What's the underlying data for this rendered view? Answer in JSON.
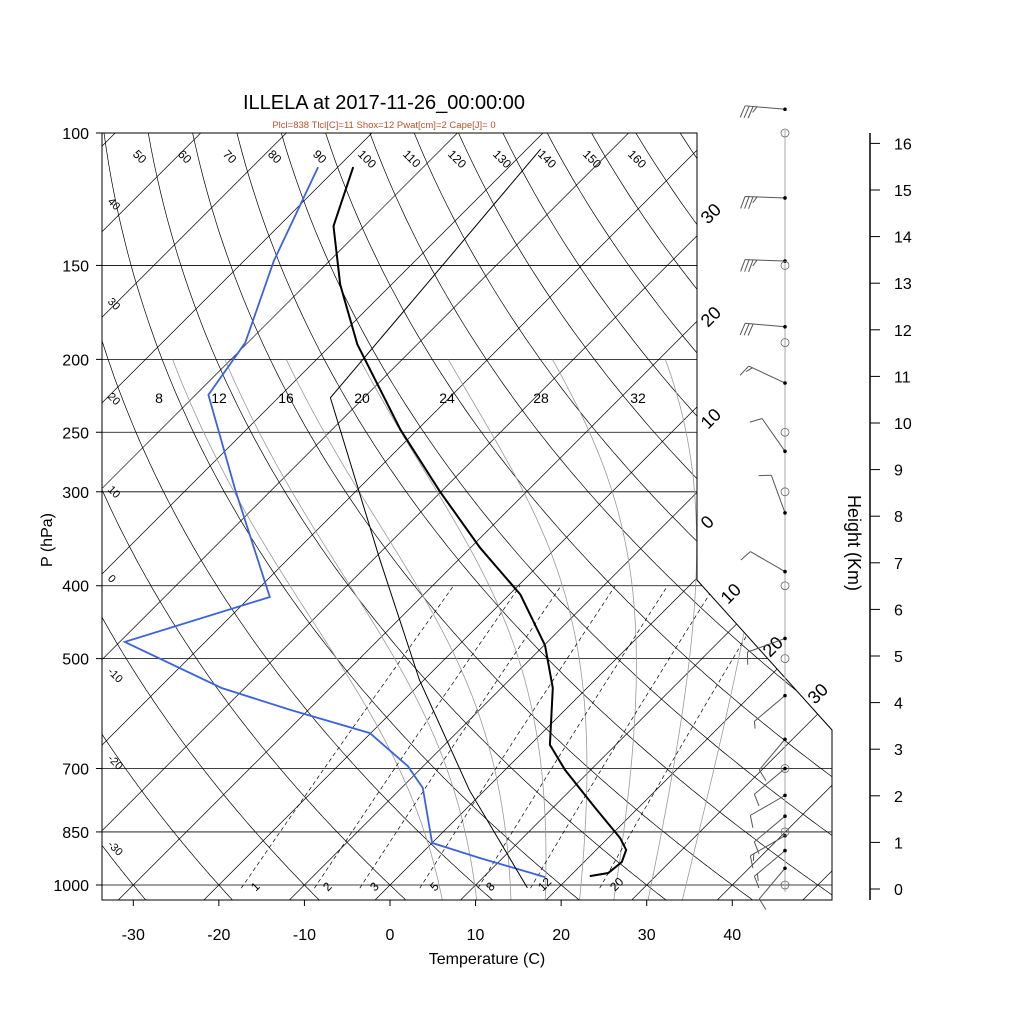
{
  "chart_data": {
    "type": "line",
    "subtype": "skew-t log-p",
    "title": "ILLELA at 2017-11-26_00:00:00",
    "subtitle": "Plcl=838 Tlcl[C]=11 Shox=12 Pwat[cm]=2 Cape[J]= 0",
    "xlabel": "Temperature (C)",
    "ylabel": "P (hPa)",
    "y2label": "Height (Km)",
    "xlim": [
      -35,
      52
    ],
    "ylim": [
      1050,
      100
    ],
    "x_ticks": [
      -30,
      -20,
      -10,
      0,
      10,
      20,
      30,
      40
    ],
    "pressure_ticks": [
      100,
      150,
      200,
      250,
      300,
      400,
      500,
      700,
      850,
      1000
    ],
    "height_ticks": [
      0,
      1,
      2,
      3,
      4,
      5,
      6,
      7,
      8,
      9,
      10,
      11,
      12,
      13,
      14,
      15,
      16
    ],
    "dry_adiabat_labels_top": [
      "50",
      "60",
      "70",
      "80",
      "90",
      "100",
      "110",
      "120",
      "130",
      "140",
      "150",
      "160"
    ],
    "dry_adiabat_labels_left": [
      "40",
      "30",
      "20",
      "10",
      "0",
      "-10",
      "-20",
      "-30"
    ],
    "moist_adiabat_labels": [
      "8",
      "12",
      "16",
      "20",
      "24",
      "28",
      "32"
    ],
    "mixing_ratio_labels": [
      "1",
      "2",
      "3",
      "5",
      "8",
      "12",
      "20"
    ],
    "isotherm_labels_right": [
      "30",
      "20",
      "10",
      "0",
      "10",
      "20",
      "30"
    ],
    "series": [
      {
        "name": "Temperature",
        "color": "#000000",
        "p": [
          973,
          964,
          932,
          898,
          866,
          790,
          703,
          651,
          547,
          480,
          411,
          356,
          300,
          248,
          191,
          159,
          133,
          111
        ],
        "t": [
          22.3,
          24.1,
          24.4,
          23.5,
          21.4,
          15.0,
          7.0,
          2.3,
          -4.0,
          -9.9,
          -18.7,
          -28.9,
          -40.1,
          -52.0,
          -67.0,
          -76.0,
          -83.6,
          -88.2
        ]
      },
      {
        "name": "Dewpoint",
        "color": "#3b62e0",
        "p": [
          976,
          921,
          879,
          743,
          695,
          628,
          585,
          547,
          475,
          414,
          298,
          223,
          190,
          148,
          111
        ],
        "t": [
          17.2,
          7.4,
          0.0,
          -7.5,
          -11.8,
          -20.1,
          -32.1,
          -42.7,
          -59.4,
          -47.7,
          -64.3,
          -78.5,
          -80.3,
          -86.5,
          -92.3
        ]
      },
      {
        "name": "Parcel",
        "color": "#000000",
        "p": [
          1009,
          748,
          534,
          370,
          225,
          157,
          105
        ],
        "t": [
          16.4,
          -1.8,
          -20.5,
          -39.1,
          -63.9,
          -66.0,
          -68.4
        ]
      }
    ],
    "winds": [
      {
        "p": 93,
        "dir": 275,
        "spd": 35
      },
      {
        "p": 122,
        "dir": 272,
        "spd": 35
      },
      {
        "p": 148,
        "dir": 272,
        "spd": 35
      },
      {
        "p": 181,
        "dir": 275,
        "spd": 30
      },
      {
        "p": 215,
        "dir": 295,
        "spd": 15
      },
      {
        "p": 265,
        "dir": 325,
        "spd": 10
      },
      {
        "p": 320,
        "dir": 340,
        "spd": 10
      },
      {
        "p": 383,
        "dir": 300,
        "spd": 10
      },
      {
        "p": 470,
        "dir": 250,
        "spd": 10
      },
      {
        "p": 560,
        "dir": 230,
        "spd": 5
      },
      {
        "p": 640,
        "dir": 220,
        "spd": 10
      },
      {
        "p": 700,
        "dir": 230,
        "spd": 10
      },
      {
        "p": 760,
        "dir": 240,
        "spd": 10
      },
      {
        "p": 810,
        "dir": 230,
        "spd": 10
      },
      {
        "p": 860,
        "dir": 240,
        "spd": 15
      },
      {
        "p": 900,
        "dir": 230,
        "spd": 15
      },
      {
        "p": 950,
        "dir": 220,
        "spd": 10
      }
    ],
    "grid": true,
    "legend": "none"
  }
}
